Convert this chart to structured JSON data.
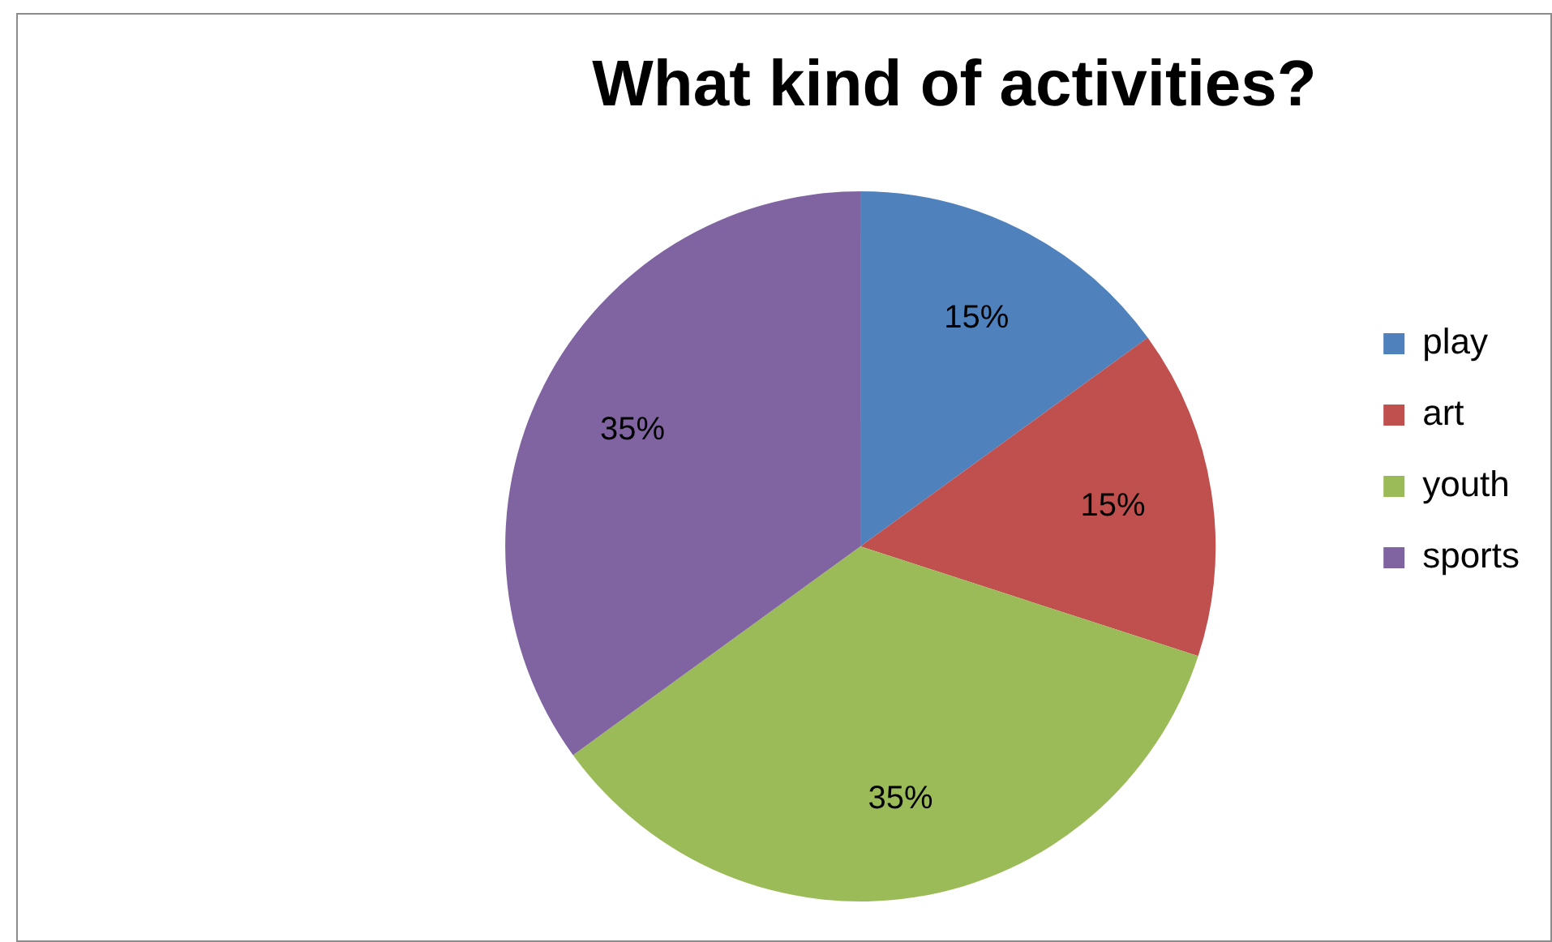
{
  "chart_data": {
    "type": "pie",
    "title": "What kind of activities?",
    "categories": [
      "play",
      "art",
      "youth",
      "sports"
    ],
    "values": [
      15,
      15,
      35,
      35
    ],
    "colors": [
      "#4f81bd",
      "#c0504d",
      "#9bbb59",
      "#8064a2"
    ],
    "value_labels": [
      "15%",
      "15%",
      "35%",
      "35%"
    ],
    "legend": "right"
  }
}
